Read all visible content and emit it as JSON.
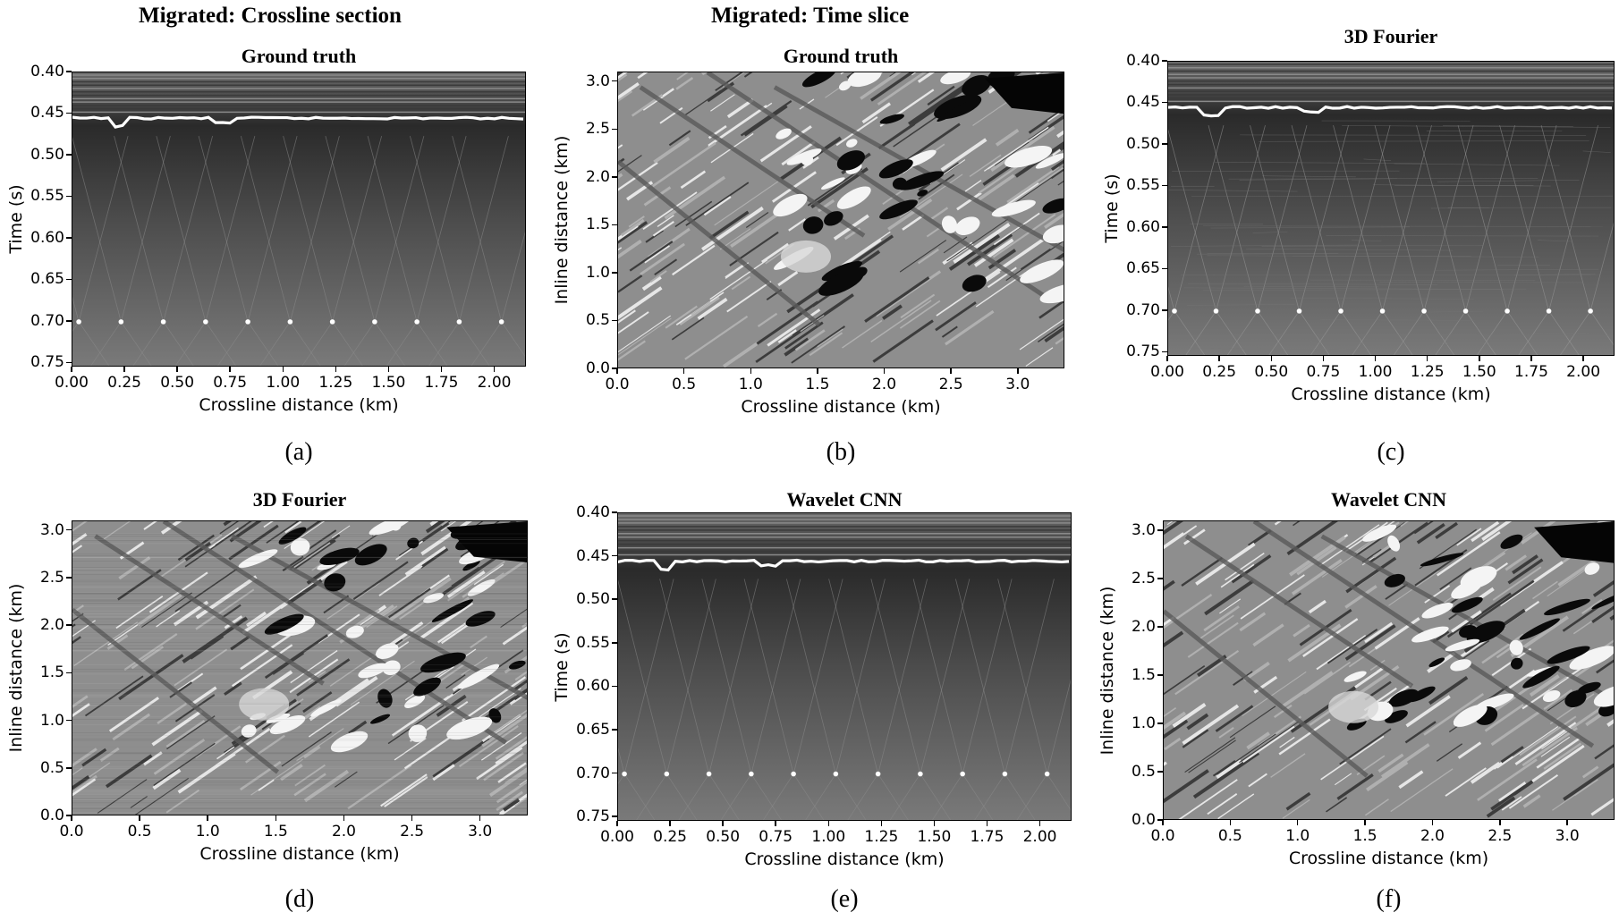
{
  "figure": {
    "column_titles": {
      "crossline": "Migrated: Crossline section",
      "timeslice": "Migrated: Time slice"
    },
    "panels": [
      {
        "id": "a",
        "type": "section",
        "title": "Ground truth",
        "caption": "(a)",
        "xlabel": "Crossline distance (km)",
        "ylabel": "Time (s)",
        "xticks": [
          "0.00",
          "0.25",
          "0.50",
          "0.75",
          "1.00",
          "1.25",
          "1.50",
          "1.75",
          "2.00"
        ],
        "yticks": [
          "0.40",
          "0.45",
          "0.50",
          "0.55",
          "0.60",
          "0.65",
          "0.70",
          "0.75"
        ]
      },
      {
        "id": "b",
        "type": "slice",
        "title": "Ground truth",
        "caption": "(b)",
        "xlabel": "Crossline distance (km)",
        "ylabel": "Inline distance (km)",
        "xticks": [
          "0.0",
          "0.5",
          "1.0",
          "1.5",
          "2.0",
          "2.5",
          "3.0"
        ],
        "yticks": [
          "3.0",
          "2.5",
          "2.0",
          "1.5",
          "1.0",
          "0.5",
          "0.0"
        ]
      },
      {
        "id": "c",
        "type": "section",
        "title": "3D Fourier",
        "caption": "(c)",
        "xlabel": "Crossline distance (km)",
        "ylabel": "Time (s)",
        "xticks": [
          "0.00",
          "0.25",
          "0.50",
          "0.75",
          "1.00",
          "1.25",
          "1.50",
          "1.75",
          "2.00"
        ],
        "yticks": [
          "0.40",
          "0.45",
          "0.50",
          "0.55",
          "0.60",
          "0.65",
          "0.70",
          "0.75"
        ]
      },
      {
        "id": "d",
        "type": "slice",
        "title": "3D Fourier",
        "caption": "(d)",
        "xlabel": "Crossline distance (km)",
        "ylabel": "Inline distance (km)",
        "xticks": [
          "0.0",
          "0.5",
          "1.0",
          "1.5",
          "2.0",
          "2.5",
          "3.0"
        ],
        "yticks": [
          "3.0",
          "2.5",
          "2.0",
          "1.5",
          "1.0",
          "0.5",
          "0.0"
        ]
      },
      {
        "id": "e",
        "type": "section",
        "title": "Wavelet CNN",
        "caption": "(e)",
        "xlabel": "Crossline distance (km)",
        "ylabel": "Time (s)",
        "xticks": [
          "0.00",
          "0.25",
          "0.50",
          "0.75",
          "1.00",
          "1.25",
          "1.50",
          "1.75",
          "2.00"
        ],
        "yticks": [
          "0.40",
          "0.45",
          "0.50",
          "0.55",
          "0.60",
          "0.65",
          "0.70",
          "0.75"
        ]
      },
      {
        "id": "f",
        "type": "slice",
        "title": "Wavelet CNN",
        "caption": "(f)",
        "xlabel": "Crossline distance (km)",
        "ylabel": "Inline distance (km)",
        "xticks": [
          "0.0",
          "0.5",
          "1.0",
          "1.5",
          "2.0",
          "2.5",
          "3.0"
        ],
        "yticks": [
          "3.0",
          "2.5",
          "2.0",
          "1.5",
          "1.0",
          "0.5",
          "0.0"
        ]
      }
    ]
  },
  "chart_data": [
    {
      "type": "heatmap",
      "title": "Ground truth",
      "xlabel": "Crossline distance (km)",
      "ylabel": "Time (s)",
      "xlim": [
        0.0,
        2.15
      ],
      "ylim": [
        0.755,
        0.4
      ],
      "reflector_time_s": 0.455,
      "point_diffractor_time_s": 0.7,
      "point_diffractor_x_km": [
        0.03,
        0.23,
        0.43,
        0.63,
        0.83,
        1.03,
        1.23,
        1.43,
        1.63,
        1.83,
        2.03
      ]
    },
    {
      "type": "heatmap",
      "title": "Ground truth",
      "xlabel": "Crossline distance (km)",
      "ylabel": "Inline distance (km)",
      "xlim": [
        0.0,
        3.35
      ],
      "ylim": [
        0.0,
        3.1
      ]
    },
    {
      "type": "heatmap",
      "title": "3D Fourier",
      "xlabel": "Crossline distance (km)",
      "ylabel": "Time (s)",
      "xlim": [
        0.0,
        2.15
      ],
      "ylim": [
        0.755,
        0.4
      ],
      "reflector_time_s": 0.455,
      "point_diffractor_time_s": 0.7,
      "point_diffractor_x_km": [
        0.03,
        0.23,
        0.43,
        0.63,
        0.83,
        1.03,
        1.23,
        1.43,
        1.63,
        1.83,
        2.03
      ]
    },
    {
      "type": "heatmap",
      "title": "3D Fourier",
      "xlabel": "Crossline distance (km)",
      "ylabel": "Inline distance (km)",
      "xlim": [
        0.0,
        3.35
      ],
      "ylim": [
        0.0,
        3.1
      ]
    },
    {
      "type": "heatmap",
      "title": "Wavelet CNN",
      "xlabel": "Crossline distance (km)",
      "ylabel": "Time (s)",
      "xlim": [
        0.0,
        2.15
      ],
      "ylim": [
        0.755,
        0.4
      ],
      "reflector_time_s": 0.455,
      "point_diffractor_time_s": 0.7,
      "point_diffractor_x_km": [
        0.03,
        0.23,
        0.43,
        0.63,
        0.83,
        1.03,
        1.23,
        1.43,
        1.63,
        1.83,
        2.03
      ]
    },
    {
      "type": "heatmap",
      "title": "Wavelet CNN",
      "xlabel": "Crossline distance (km)",
      "ylabel": "Inline distance (km)",
      "xlim": [
        0.0,
        3.35
      ],
      "ylim": [
        0.0,
        3.1
      ]
    }
  ]
}
